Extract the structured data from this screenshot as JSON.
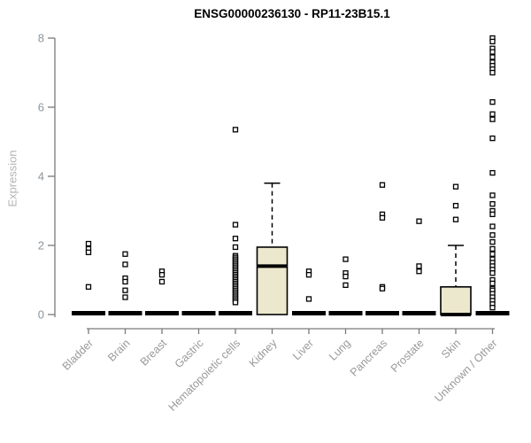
{
  "chart_data": {
    "type": "boxplot",
    "title": "ENSG00000236130 - RP11-23B15.1",
    "ylabel": "Expression",
    "xlabel": "",
    "ylim": [
      0,
      8
    ],
    "yticks": [
      0,
      2,
      4,
      6,
      8
    ],
    "grid": false,
    "legend": false,
    "categories": [
      "Bladder",
      "Brain",
      "Breast",
      "Gastric",
      "Hematopoietic cells",
      "Kidney",
      "Liver",
      "Lung",
      "Pancreas",
      "Prostate",
      "Skin",
      "Unknown / Other"
    ],
    "series": [
      {
        "category": "Bladder",
        "q1": 0,
        "median": 0,
        "q3": 0,
        "whisker_low": 0,
        "whisker_high": 0,
        "outliers": [
          2.05,
          1.9,
          1.8,
          0.8
        ]
      },
      {
        "category": "Brain",
        "q1": 0,
        "median": 0,
        "q3": 0,
        "whisker_low": 0,
        "whisker_high": 0,
        "outliers": [
          1.75,
          1.45,
          1.05,
          0.95,
          0.7,
          0.5
        ]
      },
      {
        "category": "Breast",
        "q1": 0,
        "median": 0,
        "q3": 0,
        "whisker_low": 0,
        "whisker_high": 0,
        "outliers": [
          1.25,
          1.15,
          0.95
        ]
      },
      {
        "category": "Gastric",
        "q1": 0,
        "median": 0,
        "q3": 0,
        "whisker_low": 0,
        "whisker_high": 0,
        "outliers": []
      },
      {
        "category": "Hematopoietic cells",
        "q1": 0,
        "median": 0,
        "q3": 0,
        "whisker_low": 0,
        "whisker_high": 0,
        "outliers": [
          5.35,
          2.6,
          2.2,
          1.95,
          1.7,
          1.65,
          1.6,
          1.55,
          1.5,
          1.45,
          1.4,
          1.35,
          1.3,
          1.25,
          1.2,
          1.15,
          1.1,
          1.05,
          1.0,
          0.95,
          0.9,
          0.85,
          0.8,
          0.75,
          0.7,
          0.65,
          0.6,
          0.55,
          0.5,
          0.45,
          0.4,
          0.35
        ]
      },
      {
        "category": "Kidney",
        "q1": 0,
        "median": 1.4,
        "q3": 1.95,
        "whisker_low": 0,
        "whisker_high": 3.8,
        "outliers": []
      },
      {
        "category": "Liver",
        "q1": 0,
        "median": 0,
        "q3": 0,
        "whisker_low": 0,
        "whisker_high": 0,
        "outliers": [
          1.25,
          1.15,
          0.45
        ]
      },
      {
        "category": "Lung",
        "q1": 0,
        "median": 0,
        "q3": 0,
        "whisker_low": 0,
        "whisker_high": 0,
        "outliers": [
          1.6,
          1.2,
          1.1,
          0.85
        ]
      },
      {
        "category": "Pancreas",
        "q1": 0,
        "median": 0,
        "q3": 0,
        "whisker_low": 0,
        "whisker_high": 0,
        "outliers": [
          3.75,
          2.9,
          2.8,
          0.8,
          0.75
        ]
      },
      {
        "category": "Prostate",
        "q1": 0,
        "median": 0,
        "q3": 0,
        "whisker_low": 0,
        "whisker_high": 0,
        "outliers": [
          2.7,
          1.4,
          1.25
        ]
      },
      {
        "category": "Skin",
        "q1": 0,
        "median": 0,
        "q3": 0.8,
        "whisker_low": 0,
        "whisker_high": 2.0,
        "outliers": [
          3.7,
          3.15,
          2.75
        ]
      },
      {
        "category": "Unknown / Other",
        "q1": 0,
        "median": 0,
        "q3": 0,
        "whisker_low": 0,
        "whisker_high": 0,
        "outliers": [
          8.0,
          7.9,
          7.7,
          7.6,
          7.45,
          7.3,
          7.2,
          7.1,
          7.0,
          6.15,
          5.8,
          5.65,
          5.1,
          4.1,
          3.45,
          3.2,
          3.0,
          2.9,
          2.55,
          2.3,
          2.1,
          1.9,
          1.75,
          1.6,
          1.5,
          1.4,
          1.3,
          1.2,
          1.0,
          0.9,
          0.75,
          0.7,
          0.6,
          0.5,
          0.4,
          0.3,
          0.2
        ]
      }
    ],
    "colors": {
      "box_fill": "#ece8cd",
      "box_border": "#000000",
      "median": "#000000",
      "outlier_stroke": "#000000",
      "outlier_fill": "#ffffff",
      "axis": "#7a7a7a",
      "tick_label": "#8b949c",
      "category_label": "#999999",
      "axis_label": "#b3b3b3",
      "title": "#000000",
      "background": "#ffffff"
    }
  }
}
